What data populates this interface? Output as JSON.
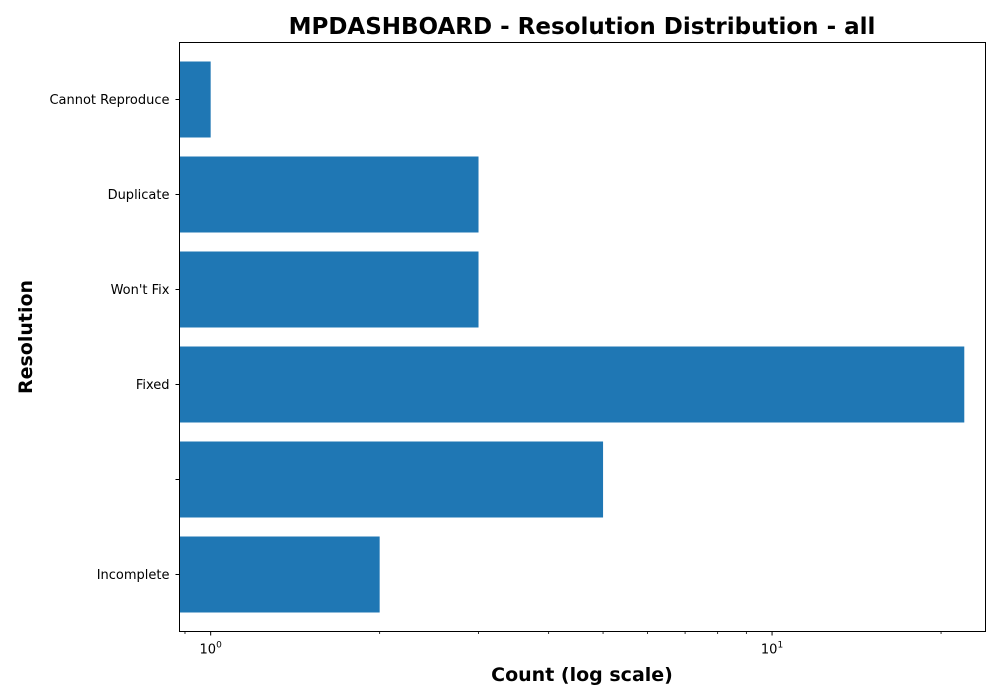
{
  "chart_data": {
    "type": "bar",
    "orientation": "horizontal",
    "title": "MPDASHBOARD - Resolution Distribution - all",
    "xlabel": "Count (log scale)",
    "ylabel": "Resolution",
    "x_scale": "log",
    "xlim": [
      0.88,
      24
    ],
    "x_ticks": [
      {
        "value": 1,
        "base": "10",
        "exp": "0"
      },
      {
        "value": 10,
        "base": "10",
        "exp": "1"
      }
    ],
    "categories": [
      "Cannot Reproduce",
      "Duplicate",
      "Won't Fix",
      "Fixed",
      "",
      "Incomplete"
    ],
    "values": [
      1,
      3,
      3,
      22,
      5,
      2
    ],
    "color": "#1f77b4",
    "grid": false,
    "legend": "none"
  }
}
